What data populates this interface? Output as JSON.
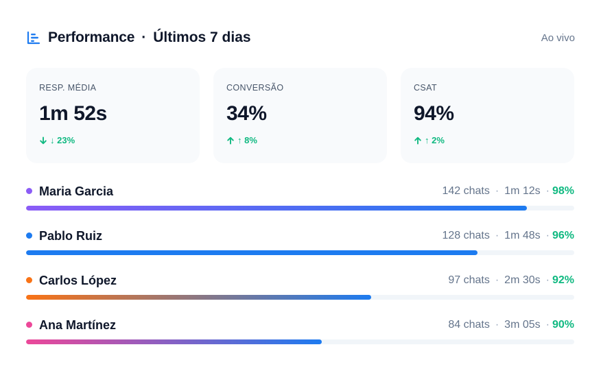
{
  "header": {
    "icon": "bar-chart-icon",
    "title": "Performance",
    "separator": "·",
    "subtitle": "Últimos 7 dias",
    "live_label": "Ao vivo"
  },
  "kpis": [
    {
      "label": "RESP. MÉDIA",
      "value": "1m 52s",
      "delta": "↓ 23%",
      "delta_icon": "arrow-down-icon"
    },
    {
      "label": "CONVERSÃO",
      "value": "34%",
      "delta": "↑ 8%",
      "delta_icon": "arrow-up-icon"
    },
    {
      "label": "CSAT",
      "value": "94%",
      "delta": "↑ 2%",
      "delta_icon": "arrow-up-icon"
    }
  ],
  "agents": [
    {
      "name": "Maria Garcia",
      "chats": "142 chats",
      "time": "1m 12s",
      "score": "98%",
      "bar_fraction": 0.914,
      "color": "#8b5cf6",
      "bar_start": "#8b5cf6",
      "bar_end": "#1d7bf0"
    },
    {
      "name": "Pablo Ruiz",
      "chats": "128 chats",
      "time": "1m 48s",
      "score": "96%",
      "bar_fraction": 0.824,
      "color": "#1d7bf0",
      "bar_start": "#1d7bf0",
      "bar_end": "#1d7bf0"
    },
    {
      "name": "Carlos López",
      "chats": "97 chats",
      "time": "2m 30s",
      "score": "92%",
      "bar_fraction": 0.629,
      "color": "#f97316",
      "bar_start": "#f97316",
      "bar_end": "#1d7bf0"
    },
    {
      "name": "Ana Martínez",
      "chats": "84 chats",
      "time": "3m 05s",
      "score": "90%",
      "bar_fraction": 0.539,
      "color": "#ec4899",
      "bar_start": "#ec4899",
      "bar_end": "#1d7bf0"
    }
  ],
  "stat_separator": "·",
  "colors": {
    "accent": "#1d7bf0",
    "positive": "#10b981",
    "muted": "#64748b"
  }
}
